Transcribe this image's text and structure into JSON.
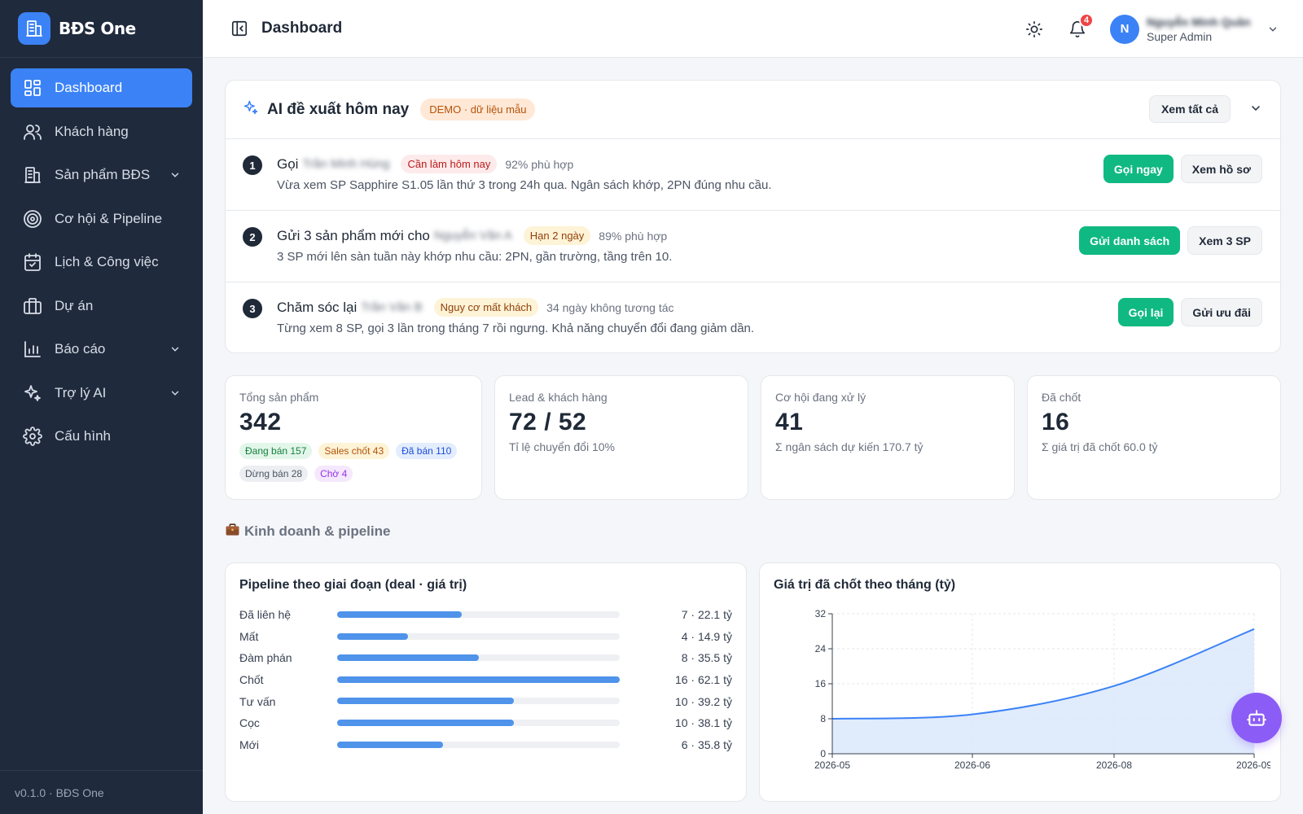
{
  "brand": {
    "name": "BĐS One"
  },
  "sidebar": {
    "items": [
      {
        "label": "Dashboard",
        "icon": "dashboard-icon",
        "active": true
      },
      {
        "label": "Khách hàng",
        "icon": "users-icon"
      },
      {
        "label": "Sản phẩm BĐS",
        "icon": "building-icon",
        "expandable": true
      },
      {
        "label": "Cơ hội & Pipeline",
        "icon": "target-icon"
      },
      {
        "label": "Lịch & Công việc",
        "icon": "calendar-icon"
      },
      {
        "label": "Dự án",
        "icon": "briefcase-icon"
      },
      {
        "label": "Báo cáo",
        "icon": "bar-chart-icon",
        "expandable": true
      },
      {
        "label": "Trợ lý AI",
        "icon": "sparkles-icon",
        "expandable": true
      },
      {
        "label": "Cấu hình",
        "icon": "gear-icon"
      }
    ],
    "footer": "v0.1.0 · BĐS One"
  },
  "topbar": {
    "title": "Dashboard",
    "notification_count": "4",
    "user": {
      "initial": "N",
      "name": "Nguyễn Minh Quân",
      "role": "Super Admin"
    }
  },
  "ai": {
    "title": "AI đề xuất hôm nay",
    "badge": "DEMO · dữ liệu mẫu",
    "see_all": "Xem tất cả",
    "recs": [
      {
        "num": "1",
        "action": "Gọi",
        "name": "Trần Minh Hùng",
        "tag": "Cần làm hôm nay",
        "match": "92% phù hợp",
        "desc": "Vừa xem SP Sapphire S1.05 lần thứ 3 trong 24h qua. Ngân sách khớp, 2PN đúng nhu cầu.",
        "primary": "Gọi ngay",
        "secondary": "Xem hồ sơ"
      },
      {
        "num": "2",
        "action": "Gửi 3 sản phẩm mới cho",
        "name": "Nguyễn Văn A",
        "tag": "Hạn 2 ngày",
        "match": "89% phù hợp",
        "desc": "3 SP mới lên sàn tuần này khớp nhu cầu: 2PN, gần trường, tầng trên 10.",
        "primary": "Gửi danh sách",
        "secondary": "Xem 3 SP"
      },
      {
        "num": "3",
        "action": "Chăm sóc lại",
        "name": "Trần Văn B",
        "tag": "Nguy cơ mất khách",
        "match": "34 ngày không tương tác",
        "desc": "Từng xem 8 SP, gọi 3 lần trong tháng 7 rồi ngưng. Khả năng chuyển đổi đang giảm dần.",
        "primary": "Gọi lại",
        "secondary": "Gửi ưu đãi"
      }
    ]
  },
  "stats": {
    "products": {
      "label": "Tổng sản phẩm",
      "value": "342",
      "pills": [
        {
          "text": "Đang bán 157",
          "color": "#15803d",
          "bg": "#e3f6ea"
        },
        {
          "text": "Sales chốt 43",
          "color": "#b45309",
          "bg": "#fdf3d6"
        },
        {
          "text": "Đã bán 110",
          "color": "#1d4ed8",
          "bg": "#e3edfd"
        },
        {
          "text": "Dừng bán 28",
          "color": "#4b5563",
          "bg": "#eceef1"
        },
        {
          "text": "Chờ 4",
          "color": "#9333ea",
          "bg": "#f5e8fd"
        }
      ]
    },
    "leads": {
      "label": "Lead & khách hàng",
      "value": "72 / 52",
      "sub": "Tỉ lệ chuyển đổi 10%"
    },
    "opps": {
      "label": "Cơ hội đang xử lý",
      "value": "41",
      "sub": "Σ ngân sách dự kiến 170.7 tỷ"
    },
    "closed": {
      "label": "Đã chốt",
      "value": "16",
      "sub": "Σ giá trị đã chốt 60.0 tỷ"
    }
  },
  "section": {
    "title": "Kinh doanh & pipeline"
  },
  "pipeline": {
    "title": "Pipeline theo giai đoạn (deal · giá trị)",
    "rows": [
      {
        "label": "Đã liên hệ",
        "fill": 0.44,
        "value": "7 · 22.1 tỷ"
      },
      {
        "label": "Mất",
        "fill": 0.25,
        "value": "4 · 14.9 tỷ"
      },
      {
        "label": "Đàm phán",
        "fill": 0.5,
        "value": "8 · 35.5 tỷ"
      },
      {
        "label": "Chốt",
        "fill": 1.0,
        "value": "16 · 62.1 tỷ"
      },
      {
        "label": "Tư vấn",
        "fill": 0.625,
        "value": "10 · 39.2 tỷ"
      },
      {
        "label": "Cọc",
        "fill": 0.625,
        "value": "10 · 38.1 tỷ"
      },
      {
        "label": "Mới",
        "fill": 0.375,
        "value": "6 · 35.8 tỷ"
      }
    ]
  },
  "chart_data": {
    "type": "area",
    "title": "Giá trị đã chốt theo tháng (tỷ)",
    "x": [
      "2026-05",
      "2026-06",
      "2026-08",
      "2026-09"
    ],
    "x_ticks": [
      "2026-05",
      "2026-06",
      "2026-08",
      "2026-09"
    ],
    "series": [
      {
        "values": [
          8,
          9,
          15.5,
          28.5
        ]
      }
    ],
    "ylim": [
      0,
      32
    ],
    "y_ticks": [
      0,
      8,
      16,
      24,
      32
    ],
    "grid": true,
    "color": "#3b82f6"
  }
}
